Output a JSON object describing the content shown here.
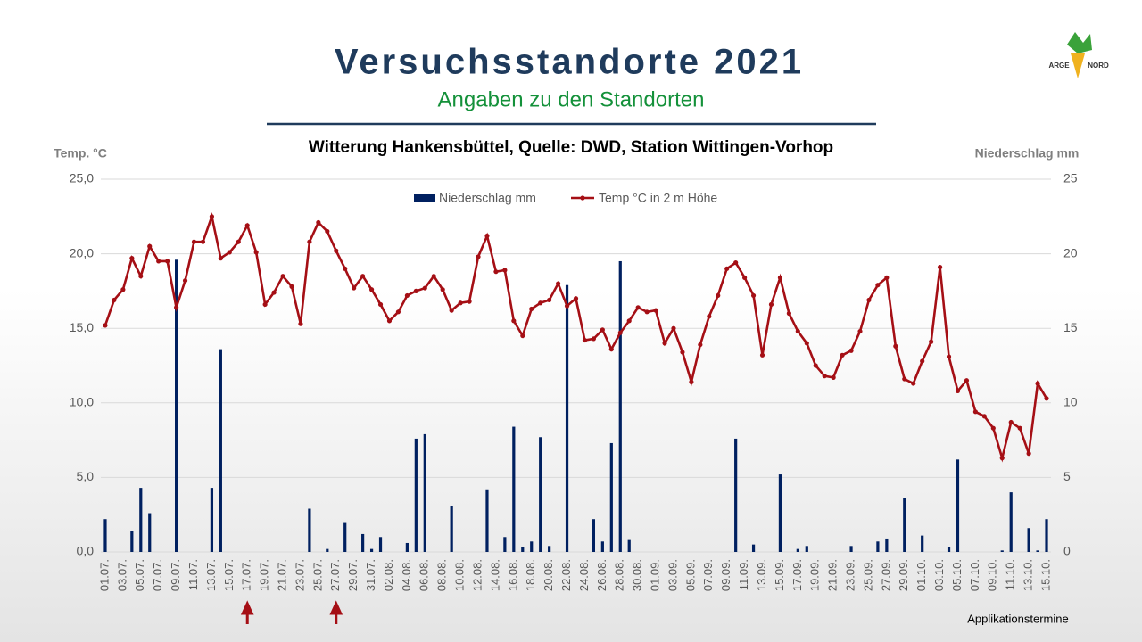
{
  "chart_data": {
    "type": "bar-line",
    "title": "Versuchsstandorte 2021",
    "subtitle": "Angaben zu den Standorten",
    "heading": "Witterung Hankensbüttel,  Quelle: DWD, Station Wittingen-Vorhop",
    "logo": [
      "ARGE",
      "NORD"
    ],
    "y_label": "Temp. °C",
    "y2_label": "Niederschlag mm",
    "categories": [
      "01.07.",
      null,
      "03.07.",
      null,
      "05.07.",
      null,
      "07.07.",
      null,
      "09.07.",
      null,
      "11.07.",
      null,
      "13.07.",
      null,
      "15.07.",
      null,
      "17.07.",
      null,
      "19.07.",
      null,
      "21.07.",
      null,
      "23.07.",
      null,
      "25.07.",
      null,
      "27.07.",
      null,
      "29.07.",
      null,
      "31.07.",
      null,
      "02.08.",
      null,
      "04.08.",
      null,
      "06.08.",
      null,
      "08.08.",
      null,
      "10.08.",
      null,
      "12.08.",
      null,
      "14.08.",
      null,
      "16.08.",
      null,
      "18.08.",
      null,
      "20.08.",
      null,
      "22.08.",
      null,
      "24.08.",
      null,
      "26.08.",
      null,
      "28.08.",
      null,
      "30.08.",
      null,
      "01.09.",
      null,
      "03.09.",
      null,
      "05.09.",
      null,
      "07.09.",
      null,
      "09.09.",
      null,
      "11.09.",
      null,
      "13.09.",
      null,
      "15.09.",
      null,
      "17.09.",
      null,
      "19.09.",
      null,
      "21.09.",
      null,
      "23.09.",
      null,
      "25.09.",
      null,
      "27.09.",
      null,
      "29.09.",
      null,
      "01.10.",
      null,
      "03.10.",
      null,
      "05.10.",
      null,
      "07.10.",
      null,
      "09.10.",
      null,
      "11.10.",
      null,
      "13.10.",
      null,
      "15.10."
    ],
    "series": [
      {
        "name": "Niederschlag mm",
        "type": "bar",
        "axis": "y2",
        "color": "#002060",
        "values": [
          2.2,
          0,
          0,
          1.4,
          4.3,
          2.6,
          0,
          0,
          19.6,
          0,
          0,
          0,
          4.3,
          13.6,
          0,
          0,
          0,
          0,
          0,
          0,
          0,
          0,
          0,
          2.9,
          0,
          0.2,
          0,
          2.0,
          0,
          1.2,
          0.2,
          1.0,
          0,
          0,
          0.6,
          7.6,
          7.9,
          0,
          0,
          3.1,
          0,
          0,
          0,
          4.2,
          0,
          1.0,
          8.4,
          0.3,
          0.7,
          7.7,
          0.4,
          0,
          17.9,
          0,
          0,
          2.2,
          0.7,
          7.3,
          19.5,
          0.8,
          0,
          0,
          0,
          0,
          0,
          0,
          0,
          0,
          0,
          0,
          0,
          7.6,
          0,
          0.5,
          0,
          0,
          5.2,
          0,
          0.2,
          0.4,
          0,
          0,
          0,
          0,
          0.4,
          0,
          0,
          0.7,
          0.9,
          0,
          3.6,
          0,
          1.1,
          0,
          0,
          0.3,
          6.2,
          0,
          0,
          0,
          0,
          0.1,
          4.0,
          0,
          1.6,
          0.1,
          2.2
        ]
      },
      {
        "name": "Temp °C in 2 m Höhe",
        "type": "line",
        "color": "#a50f15",
        "values": [
          15.2,
          16.9,
          17.6,
          19.7,
          18.5,
          20.5,
          19.5,
          19.5,
          16.4,
          18.2,
          20.8,
          20.8,
          22.5,
          19.7,
          20.1,
          20.8,
          21.9,
          20.1,
          16.6,
          17.4,
          18.5,
          17.8,
          15.3,
          20.8,
          22.1,
          21.5,
          20.2,
          19.0,
          17.7,
          18.5,
          17.6,
          16.6,
          15.5,
          16.1,
          17.2,
          17.5,
          17.7,
          18.5,
          17.6,
          16.2,
          16.7,
          16.8,
          19.8,
          21.2,
          18.8,
          18.9,
          15.5,
          14.5,
          16.3,
          16.7,
          16.9,
          18.0,
          16.5,
          17.0,
          14.2,
          14.3,
          14.9,
          13.6,
          14.7,
          15.5,
          16.4,
          16.1,
          16.2,
          14.0,
          15.0,
          13.4,
          11.4,
          13.9,
          15.8,
          17.2,
          19.0,
          19.4,
          18.4,
          17.2,
          13.2,
          16.6,
          18.4,
          16.0,
          14.8,
          14.0,
          12.5,
          11.8,
          11.7,
          13.2,
          13.5,
          14.8,
          16.9,
          17.9,
          18.4,
          13.8,
          11.6,
          11.3,
          12.8,
          14.1,
          19.1,
          13.1,
          10.8,
          11.5,
          9.4,
          9.1,
          8.3,
          6.3,
          8.7,
          8.3,
          6.6,
          11.3,
          10.3
        ]
      }
    ],
    "ylim": [
      0,
      25
    ],
    "yticks": [
      {
        "value": 0,
        "label": "0,0"
      },
      {
        "value": 5,
        "label": "5,0"
      },
      {
        "value": 10,
        "label": "10,0"
      },
      {
        "value": 15,
        "label": "15,0"
      },
      {
        "value": 20,
        "label": "20,0"
      },
      {
        "value": 25,
        "label": "25,0"
      }
    ],
    "y2lim": [
      0,
      25
    ],
    "y2ticks": [
      0,
      5,
      10,
      15,
      20,
      25
    ],
    "grid": true,
    "legend": "top",
    "applications": {
      "label": "Applikationstermine",
      "x": [
        "17.07.",
        "27.07."
      ],
      "color": "#a50f15"
    }
  }
}
